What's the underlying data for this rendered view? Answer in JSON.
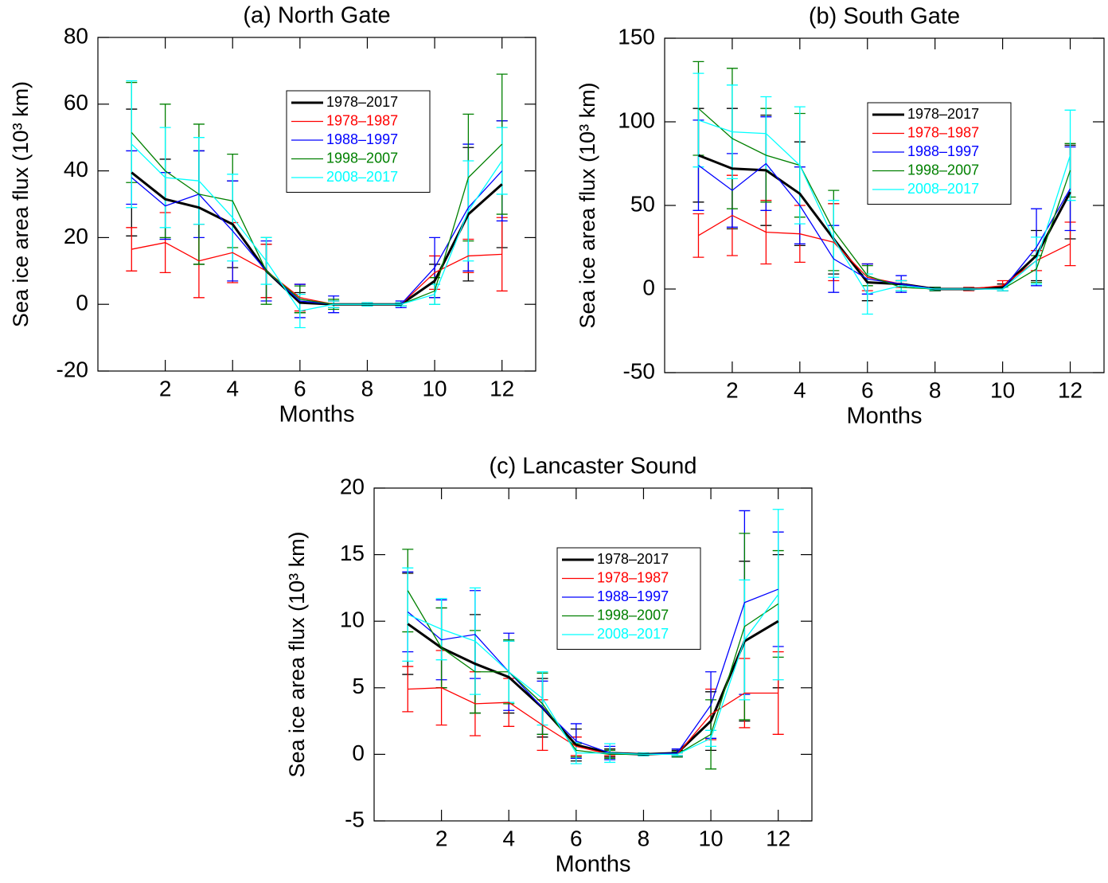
{
  "chart_data": [
    {
      "type": "line",
      "title": "(a) North Gate",
      "x_label": "Months",
      "y_label": "Sea ice area flux (10³ km)",
      "xlim": [
        0,
        13
      ],
      "xticks": [
        2,
        4,
        6,
        8,
        10,
        12
      ],
      "ylim": [
        -20,
        80
      ],
      "yticks": [
        -20,
        0,
        20,
        40,
        60,
        80
      ],
      "x": [
        1,
        2,
        3,
        4,
        5,
        6,
        7,
        8,
        9,
        10,
        11,
        12
      ],
      "series": [
        {
          "name": "1978–2017",
          "color": "#000000",
          "values": [
            39.5,
            31.5,
            29,
            24,
            10,
            0.5,
            0,
            0,
            0,
            7,
            27,
            36
          ],
          "errors": [
            19,
            12,
            17,
            13,
            8,
            3,
            1,
            0.5,
            0.5,
            5,
            20,
            19
          ]
        },
        {
          "name": "1978–1987",
          "color": "#ff0000",
          "values": [
            16.5,
            18.5,
            13,
            15.5,
            10,
            2,
            0,
            0,
            0,
            9.5,
            14.5,
            15
          ],
          "errors": [
            6.5,
            9,
            11,
            9,
            8,
            4,
            1,
            0.5,
            0.5,
            5,
            5,
            11
          ]
        },
        {
          "name": "1988–1997",
          "color": "#0000ff",
          "values": [
            38,
            29.5,
            33,
            22,
            10,
            1,
            0,
            0,
            0,
            11,
            29,
            40
          ],
          "errors": [
            8,
            10,
            13,
            15,
            9,
            5,
            2.5,
            0.5,
            1,
            9,
            19,
            15
          ]
        },
        {
          "name": "1998–2007",
          "color": "#008000",
          "values": [
            51.5,
            40,
            33,
            31,
            10,
            1.5,
            0,
            0,
            0,
            4,
            38,
            48
          ],
          "errors": [
            15,
            20,
            21,
            14,
            10,
            4,
            1.5,
            0.5,
            0.5,
            4,
            19,
            21
          ]
        },
        {
          "name": "2008–2017",
          "color": "#00ffff",
          "values": [
            48,
            38,
            37,
            26,
            13,
            -2,
            0,
            0,
            0,
            3,
            28,
            43
          ],
          "errors": [
            19,
            15,
            13,
            13,
            7,
            5,
            1,
            0.5,
            0.5,
            3,
            15,
            10
          ]
        }
      ]
    },
    {
      "type": "line",
      "title": "(b) South Gate",
      "x_label": "Months",
      "y_label": "Sea ice area flux (10³ km)",
      "xlim": [
        0,
        13
      ],
      "xticks": [
        2,
        4,
        6,
        8,
        10,
        12
      ],
      "ylim": [
        -50,
        150
      ],
      "yticks": [
        -50,
        0,
        50,
        100,
        150
      ],
      "x": [
        1,
        2,
        3,
        4,
        5,
        6,
        7,
        8,
        9,
        10,
        11,
        12
      ],
      "series": [
        {
          "name": "1978–2017",
          "color": "#000000",
          "values": [
            80,
            72,
            71,
            57,
            30,
            4,
            3,
            0,
            0,
            1,
            20,
            58
          ],
          "errors": [
            28,
            36,
            33,
            31,
            21,
            11,
            2,
            1,
            0.5,
            2,
            15,
            28
          ]
        },
        {
          "name": "1978–1987",
          "color": "#ff0000",
          "values": [
            32,
            44,
            34,
            33,
            28,
            7,
            3,
            0,
            0,
            2,
            17,
            27
          ],
          "errors": [
            13,
            24,
            19,
            17,
            23,
            8,
            2,
            1,
            1,
            3,
            6,
            13
          ]
        },
        {
          "name": "1988–1997",
          "color": "#0000ff",
          "values": [
            74,
            59,
            75,
            50,
            18,
            6,
            3,
            0,
            0,
            0,
            25,
            60
          ],
          "errors": [
            27,
            22,
            28,
            23,
            20,
            9,
            5,
            1,
            0.5,
            1,
            23,
            25
          ]
        },
        {
          "name": "1998–2007",
          "color": "#008000",
          "values": [
            108,
            90,
            80,
            74,
            35,
            8,
            1,
            0,
            0,
            0,
            12,
            71
          ],
          "errors": [
            28,
            42,
            28,
            31,
            24,
            6,
            2,
            1,
            0.5,
            1,
            8,
            16
          ]
        },
        {
          "name": "2008–2017",
          "color": "#00ffff",
          "values": [
            101,
            94,
            93,
            74,
            30,
            -3,
            2,
            0,
            0,
            0,
            17,
            80
          ],
          "errors": [
            28,
            28,
            22,
            35,
            23,
            12,
            3,
            0.5,
            0.5,
            1,
            14,
            27
          ]
        }
      ]
    },
    {
      "type": "line",
      "title": "(c) Lancaster Sound",
      "x_label": "Months",
      "y_label": "Sea ice area flux (10³ km)",
      "xlim": [
        0,
        13
      ],
      "xticks": [
        2,
        4,
        6,
        8,
        10,
        12
      ],
      "ylim": [
        -5,
        20
      ],
      "yticks": [
        -5,
        0,
        5,
        10,
        15,
        20
      ],
      "x": [
        1,
        2,
        3,
        4,
        5,
        6,
        7,
        8,
        9,
        10,
        11,
        12
      ],
      "series": [
        {
          "name": "1978–2017",
          "color": "#000000",
          "values": [
            9.8,
            8,
            6.8,
            5.8,
            3.5,
            0.7,
            0.1,
            0,
            0.1,
            2.5,
            8.5,
            10
          ],
          "errors": [
            3.8,
            3,
            3.7,
            2.7,
            2.2,
            1.2,
            0.3,
            0.1,
            0.2,
            2.2,
            6,
            5
          ]
        },
        {
          "name": "1978–1987",
          "color": "#ff0000",
          "values": [
            4.9,
            5,
            3.8,
            3.9,
            2.2,
            0.6,
            0,
            0,
            0,
            3,
            4.6,
            4.6
          ],
          "errors": [
            1.7,
            2.8,
            2.4,
            1.8,
            1.9,
            0.7,
            0.1,
            0.1,
            0.1,
            1.9,
            2.6,
            3.1
          ]
        },
        {
          "name": "1988–1997",
          "color": "#0000ff",
          "values": [
            10.7,
            8.6,
            9,
            6.2,
            3.5,
            1,
            0.1,
            0,
            0.1,
            3.7,
            11.4,
            12.4
          ],
          "errors": [
            3,
            3,
            3.3,
            2.9,
            2,
            1.3,
            0.5,
            0.1,
            0.3,
            2.5,
            6.9,
            4.3
          ]
        },
        {
          "name": "1998–2007",
          "color": "#008000",
          "values": [
            12.3,
            8,
            6.2,
            6.2,
            3.8,
            0.3,
            0,
            0,
            0,
            1.5,
            9.6,
            11.3
          ],
          "errors": [
            3.1,
            3,
            3.1,
            2.4,
            2.3,
            0.5,
            0.3,
            0.1,
            0.2,
            2.6,
            7,
            4
          ]
        },
        {
          "name": "2008–2017",
          "color": "#00ffff",
          "values": [
            10.5,
            9.4,
            8.5,
            6.2,
            4.2,
            0.1,
            0.1,
            0,
            0,
            1.2,
            8.6,
            12
          ],
          "errors": [
            3.5,
            2.3,
            4,
            2.3,
            2,
            0.8,
            0.7,
            0.1,
            0.1,
            0.6,
            4.5,
            6.4
          ]
        }
      ]
    }
  ]
}
